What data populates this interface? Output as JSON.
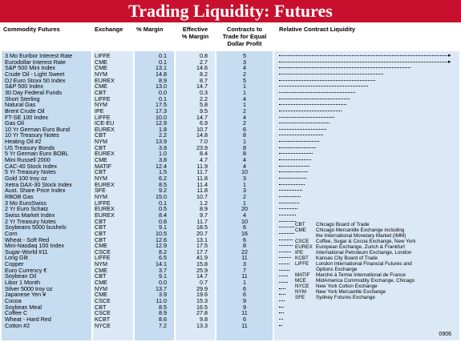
{
  "title": "Trading Liquidity: Futures",
  "headers": {
    "commodity": "Commodity Futures",
    "exchange": "Exchange",
    "margin": "% Margin",
    "effective_margin_1": "Effective",
    "effective_margin_2": "% Margin",
    "contracts_1": "Contracts to",
    "contracts_2": "Trade for Equal",
    "contracts_3": "Dollar Profit",
    "liquidity": "Relative Contract Liquidity"
  },
  "rows": [
    {
      "name": "3 Mo Euribor Interest Rate",
      "exchange": "LIFFE",
      "margin": "0.1",
      "eff": "0.8",
      "contracts": "5",
      "liq": 1.0,
      "arrow": true
    },
    {
      "name": "Eurodollar Interest Rate",
      "exchange": "CME",
      "margin": "0.1",
      "eff": "2.7",
      "contracts": "3",
      "liq": 1.0,
      "arrow": true
    },
    {
      "name": "S&P 500 Mini Index",
      "exchange": "CME",
      "margin": "13.1",
      "eff": "14.6",
      "contracts": "4",
      "liq": 0.78
    },
    {
      "name": "Crude Oil - Light Sweet",
      "exchange": "NYM",
      "margin": "14.8",
      "eff": "8.2",
      "contracts": "2",
      "liq": 0.62
    },
    {
      "name": "DJ Euro Stoxx 50 Index",
      "exchange": "EUREX",
      "margin": "8.9",
      "eff": "8.7",
      "contracts": "5",
      "liq": 0.57
    },
    {
      "name": "S&P 500 Index",
      "exchange": "CME",
      "margin": "13.0",
      "eff": "14.7",
      "contracts": "1",
      "liq": 0.53
    },
    {
      "name": "30 Day Federal Funds",
      "exchange": "CBT",
      "margin": "0.0",
      "eff": "0.3",
      "contracts": "1",
      "liq": 0.45
    },
    {
      "name": "Short Sterling",
      "exchange": "LIFFE",
      "margin": "0.1",
      "eff": "2.2",
      "contracts": "4",
      "liq": 0.42
    },
    {
      "name": "Natural Gas",
      "exchange": "NYM",
      "margin": "17.5",
      "eff": "5.8",
      "contracts": "1",
      "liq": 0.4
    },
    {
      "name": "Brent Crude Oil",
      "exchange": "IPE",
      "margin": "17.3",
      "eff": "9.5",
      "contracts": "2",
      "liq": 0.37
    },
    {
      "name": "FT-SE 100 Index",
      "exchange": "LIFFE",
      "margin": "10.0",
      "eff": "14.7",
      "contracts": "4",
      "liq": 0.33
    },
    {
      "name": "Gas Oil",
      "exchange": "ICE-EU",
      "margin": "12.9",
      "eff": "6.9",
      "contracts": "2",
      "liq": 0.3
    },
    {
      "name": "10 Yr German Euro Bund",
      "exchange": "EUREX",
      "margin": "1.8",
      "eff": "10.7",
      "contracts": "6",
      "liq": 0.28
    },
    {
      "name": "10 Yr Treasury Notes",
      "exchange": "CBT",
      "margin": "2.2",
      "eff": "14.8",
      "contracts": "8",
      "liq": 0.26
    },
    {
      "name": "Heating Oil #2",
      "exchange": "NYM",
      "margin": "13.9",
      "eff": "7.0",
      "contracts": "1",
      "liq": 0.24
    },
    {
      "name": "US Treasury Bonds",
      "exchange": "CBT",
      "margin": "3.9",
      "eff": "23.9",
      "contracts": "8",
      "liq": 0.22
    },
    {
      "name": "5 Yr German Euro BOBL",
      "exchange": "EUREX",
      "margin": "1.0",
      "eff": "8.4",
      "contracts": "8",
      "liq": 0.2
    },
    {
      "name": "Mini Russell 2000",
      "exchange": "CME",
      "margin": "3.8",
      "eff": "4.7",
      "contracts": "4",
      "liq": 0.19
    },
    {
      "name": "CAC-40 Stock Index",
      "exchange": "MATIF",
      "margin": "12.4",
      "eff": "11.9",
      "contracts": "4",
      "liq": 0.18
    },
    {
      "name": "5 Yr Treasury Notes",
      "exchange": "CBT",
      "margin": "1.5",
      "eff": "11.7",
      "contracts": "10",
      "liq": 0.17
    },
    {
      "name": "Gold 100 troy oz",
      "exchange": "NYM",
      "margin": "6.2",
      "eff": "11.8",
      "contracts": "3",
      "liq": 0.16
    },
    {
      "name": "Xetra DAX-30 Stock Index",
      "exchange": "EUREX",
      "margin": "8.5",
      "eff": "11.4",
      "contracts": "1",
      "liq": 0.15
    },
    {
      "name": "Aust. Share Price Index",
      "exchange": "SFE",
      "margin": "9.2",
      "eff": "11.8",
      "contracts": "3",
      "liq": 0.14
    },
    {
      "name": "RBOB Gas",
      "exchange": "NYM",
      "margin": "15.0",
      "eff": "10.7",
      "contracts": "2",
      "liq": 0.13
    },
    {
      "name": "3 Mo EuroSwiss",
      "exchange": "LIFFE",
      "margin": "0.1",
      "eff": "1.2",
      "contracts": "1",
      "liq": 0.12
    },
    {
      "name": "2 Yr Euro Schatz",
      "exchange": "EUREX",
      "margin": "0.5",
      "eff": "8.9",
      "contracts": "20",
      "liq": 0.11
    },
    {
      "name": "Swiss Market Index",
      "exchange": "EUREX",
      "margin": "8.4",
      "eff": "9.7",
      "contracts": "4",
      "liq": 0.1
    },
    {
      "name": "2 Yr Treasury Notes",
      "exchange": "CBT",
      "margin": "0.8",
      "eff": "11.7",
      "contracts": "10",
      "liq": 0.1
    },
    {
      "name": "Soybeans 5000 bushels",
      "exchange": "CBT",
      "margin": "9.1",
      "eff": "18.5",
      "contracts": "6",
      "liq": 0.09
    },
    {
      "name": "Corn",
      "exchange": "CBT",
      "margin": "10.5",
      "eff": "20.7",
      "contracts": "16",
      "liq": 0.09
    },
    {
      "name": "Wheat - Soft Red",
      "exchange": "CBT",
      "margin": "12.6",
      "eff": "13.1",
      "contracts": "6",
      "liq": 0.08
    },
    {
      "name": "Mini-Nasdaq 100 Index",
      "exchange": "CME",
      "margin": "12.9",
      "eff": "17.5",
      "contracts": "8",
      "liq": 0.08
    },
    {
      "name": "Sugar-World #11",
      "exchange": "CSCE",
      "margin": "8.2",
      "eff": "17.7",
      "contracts": "22",
      "liq": 0.07
    },
    {
      "name": "Long Gilt",
      "exchange": "LIFFE",
      "margin": "6.5",
      "eff": "41.9",
      "contracts": "11",
      "liq": 0.07
    },
    {
      "name": "Copper",
      "exchange": "NYM",
      "margin": "14.1",
      "eff": "15.8",
      "contracts": "3",
      "liq": 0.06
    },
    {
      "name": "Euro Currency €",
      "exchange": "CME",
      "margin": "3.7",
      "eff": "25.9",
      "contracts": "7",
      "liq": 0.06
    },
    {
      "name": "Soybean Oil",
      "exchange": "CBT",
      "margin": "9.1",
      "eff": "14.7",
      "contracts": "11",
      "liq": 0.05
    },
    {
      "name": "Libor 1 Month",
      "exchange": "CME",
      "margin": "0.0",
      "eff": "0.7",
      "contracts": "1",
      "liq": 0.05
    },
    {
      "name": "Silver 5000 troy oz",
      "exchange": "NYM",
      "margin": "13.7",
      "eff": "29.9",
      "contracts": "6",
      "liq": 0.04
    },
    {
      "name": "Japanese Yen ¥",
      "exchange": "CME",
      "margin": "3.9",
      "eff": "19.6",
      "contracts": "6",
      "liq": 0.04
    },
    {
      "name": "Cocoa",
      "exchange": "CSCE",
      "margin": "11.0",
      "eff": "15.3",
      "contracts": "9",
      "liq": 0.035
    },
    {
      "name": "Soybean Meal",
      "exchange": "CBT",
      "margin": "8.5",
      "eff": "16.5",
      "contracts": "9",
      "liq": 0.03
    },
    {
      "name": "Coffee C",
      "exchange": "CSCE",
      "margin": "8.9",
      "eff": "27.8",
      "contracts": "11",
      "liq": 0.03
    },
    {
      "name": "Wheat - Hard Red",
      "exchange": "KCBT",
      "margin": "8.6",
      "eff": "9.8",
      "contracts": "6",
      "liq": 0.025
    },
    {
      "name": "Cotton #2",
      "exchange": "NYCE",
      "margin": "7.2",
      "eff": "13.3",
      "contracts": "11",
      "liq": 0.02
    }
  ],
  "legend": [
    {
      "code": "CBT",
      "name": "Chicago Board of Trade"
    },
    {
      "code": "CME",
      "name": "Chicago Mercantile Exchange including"
    },
    {
      "code": "",
      "name": "the International Monetary Market (IMM)"
    },
    {
      "code": "CSCE",
      "name": "Coffee, Sugar & Cocoa Exchange, New York"
    },
    {
      "code": "EUREX",
      "name": "European Exchange, Zurich & Frankfurt"
    },
    {
      "code": "IPE",
      "name": "International Petroleum Exchange, London"
    },
    {
      "code": "KCBT",
      "name": "Kansas City Board of Trade"
    },
    {
      "code": "LIFFE",
      "name": "London International Financial Futures and"
    },
    {
      "code": "",
      "name": "Options Exchange"
    },
    {
      "code": "MATIF",
      "name": "Marché à Terme International de France"
    },
    {
      "code": "MCE",
      "name": "MidAmerica Commodity Exchange, Chicago"
    },
    {
      "code": "NYCE",
      "name": "New York Cotton Exchange"
    },
    {
      "code": "NYM",
      "name": "New York Mercantile Exchange"
    },
    {
      "code": "SFE",
      "name": "Sydney Futures Exchange"
    }
  ],
  "footnote": "0906",
  "colors": {
    "title_bg": "#c8102e",
    "band": "#c6dcf0",
    "band_alt": "#dbe9f6"
  }
}
